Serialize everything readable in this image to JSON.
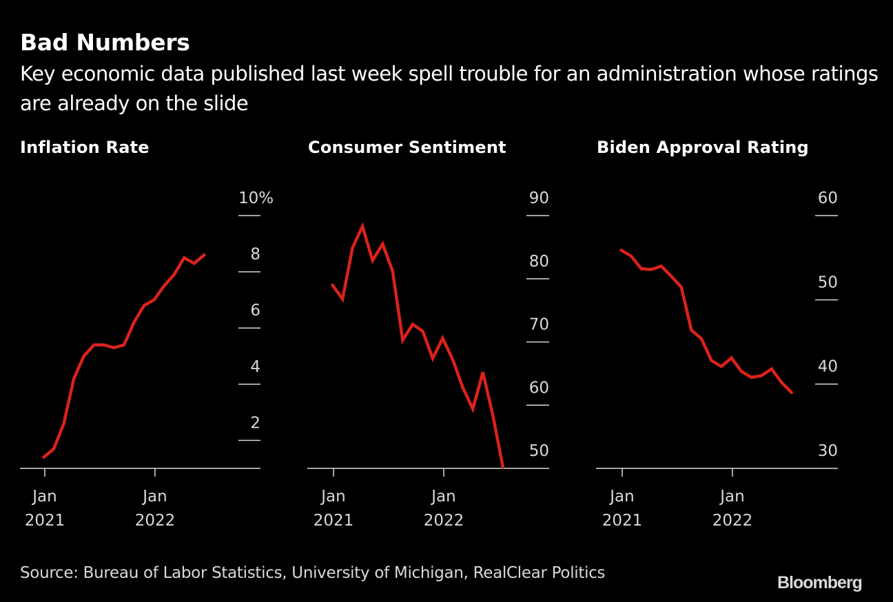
{
  "header": {
    "title": "Bad Numbers",
    "subtitle": "Key economic data published last week spell trouble for an administration whose ratings are already on the slide"
  },
  "footer": {
    "source": "Source: Bureau of Labor Statistics, University of Michigan, RealClear Politics",
    "logo": "Bloomberg"
  },
  "colors": {
    "line": "#d9221c",
    "axis": "#d9d9d9",
    "background": "#000000"
  },
  "chart_data": [
    {
      "type": "line",
      "title": "Inflation Rate",
      "xlabel": "",
      "ylabel": "",
      "x_ticks": [
        {
          "label": [
            "Jan",
            "2021"
          ],
          "month": 0
        },
        {
          "label": [
            "Jan",
            "2022"
          ],
          "month": 12
        }
      ],
      "y_ticks": [
        {
          "value": 2,
          "label": "2"
        },
        {
          "value": 4,
          "label": "4"
        },
        {
          "value": 6,
          "label": "6"
        },
        {
          "value": 8,
          "label": "8"
        },
        {
          "value": 10,
          "label": "10%"
        }
      ],
      "ylim": [
        1,
        10
      ],
      "x_start": "2021-01",
      "x_end": "2022-05",
      "series": [
        {
          "name": "Inflation Rate",
          "values": [
            1.4,
            1.7,
            2.6,
            4.2,
            5.0,
            5.4,
            5.4,
            5.3,
            5.4,
            6.2,
            6.8,
            7.0,
            7.5,
            7.9,
            8.5,
            8.3,
            8.6
          ]
        }
      ],
      "grid": true
    },
    {
      "type": "line",
      "title": "Consumer Sentiment",
      "xlabel": "",
      "ylabel": "",
      "x_ticks": [
        {
          "label": [
            "Jan",
            "2021"
          ],
          "month": 0
        },
        {
          "label": [
            "Jan",
            "2022"
          ],
          "month": 12
        }
      ],
      "y_ticks": [
        {
          "value": 50,
          "label": "50"
        },
        {
          "value": 60,
          "label": "60"
        },
        {
          "value": 70,
          "label": "70"
        },
        {
          "value": 80,
          "label": "80"
        },
        {
          "value": 90,
          "label": "90"
        }
      ],
      "ylim": [
        50,
        90
      ],
      "x_start": "2021-01",
      "x_end": "2022-06",
      "series": [
        {
          "name": "Consumer Sentiment",
          "values": [
            79.0,
            76.8,
            84.9,
            88.3,
            82.9,
            85.5,
            81.2,
            70.3,
            72.8,
            71.7,
            67.4,
            70.6,
            67.2,
            62.8,
            59.4,
            65.2,
            58.4,
            50.2
          ]
        }
      ],
      "grid": true
    },
    {
      "type": "line",
      "title": "Biden Approval Rating",
      "xlabel": "",
      "ylabel": "",
      "x_ticks": [
        {
          "label": [
            "Jan",
            "2021"
          ],
          "month": 0
        },
        {
          "label": [
            "Jan",
            "2022"
          ],
          "month": 12
        }
      ],
      "y_ticks": [
        {
          "value": 30,
          "label": "30"
        },
        {
          "value": 40,
          "label": "40"
        },
        {
          "value": 50,
          "label": "50"
        },
        {
          "value": 60,
          "label": "60"
        }
      ],
      "ylim": [
        30,
        60
      ],
      "x_start": "2021-01",
      "x_end": "2022-06",
      "series": [
        {
          "name": "Biden Approval Rating",
          "values": [
            55.9,
            55.2,
            53.7,
            53.6,
            54.0,
            52.8,
            51.5,
            46.4,
            45.4,
            42.8,
            42.1,
            43.1,
            41.5,
            40.8,
            41.0,
            41.8,
            40.2,
            39.0
          ]
        }
      ],
      "grid": true
    }
  ]
}
